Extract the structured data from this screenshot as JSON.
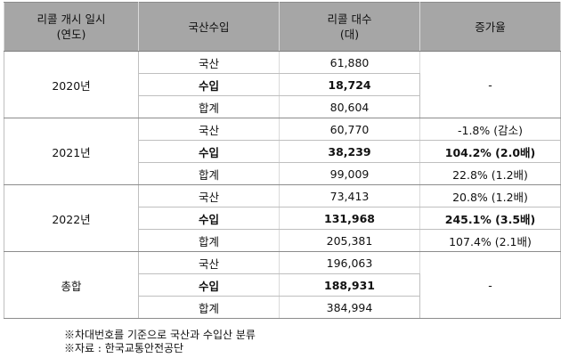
{
  "headers": {
    "col1_line1": "리콜 개시 일시",
    "col1_line2": "(연도)",
    "col2": "국산수입",
    "col3_line1": "리콜 대수",
    "col3_line2": "(대)",
    "col4": "증가율"
  },
  "groups": [
    {
      "year": "2020년",
      "rows": [
        {
          "type": "국산",
          "count": "61,880",
          "growth": ""
        },
        {
          "type": "수입",
          "count": "18,724",
          "growth": ""
        },
        {
          "type": "합계",
          "count": "80,604",
          "growth": ""
        }
      ],
      "merged_growth": "-"
    },
    {
      "year": "2021년",
      "rows": [
        {
          "type": "국산",
          "count": "60,770",
          "growth": "-1.8% (감소)"
        },
        {
          "type": "수입",
          "count": "38,239",
          "growth": "104.2% (2.0배)"
        },
        {
          "type": "합계",
          "count": "99,009",
          "growth": "22.8% (1.2배)"
        }
      ]
    },
    {
      "year": "2022년",
      "rows": [
        {
          "type": "국산",
          "count": "73,413",
          "growth": "20.8% (1.2배)"
        },
        {
          "type": "수입",
          "count": "131,968",
          "growth": "245.1% (3.5배)"
        },
        {
          "type": "합계",
          "count": "205,381",
          "growth": "107.4% (2.1배)"
        }
      ]
    },
    {
      "year": "총합",
      "rows": [
        {
          "type": "국산",
          "count": "196,063",
          "growth": ""
        },
        {
          "type": "수입",
          "count": "188,931",
          "growth": ""
        },
        {
          "type": "합계",
          "count": "384,994",
          "growth": ""
        }
      ],
      "merged_growth": "-"
    }
  ],
  "notes": [
    "※차대번호를 기준으로 국산과 수입산 분류",
    "※자료 : 한국교통안전공단"
  ]
}
